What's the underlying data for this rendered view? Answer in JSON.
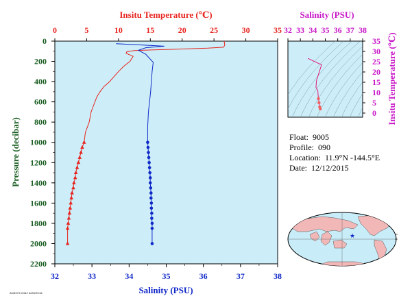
{
  "chart_data": [
    {
      "type": "line",
      "top_axis_title": "Insitu Temperature (℃)",
      "bottom_axis_title": "Salinity (PSU)",
      "ylabel": "Pressure (decibar)",
      "xlim_temperature": [
        0,
        35
      ],
      "xlim_salinity": [
        32,
        38
      ],
      "ylim": [
        0,
        2200
      ],
      "temperature_ticks": [
        0,
        5,
        10,
        15,
        20,
        25,
        30,
        35
      ],
      "salinity_ticks": [
        32,
        33,
        34,
        35,
        36,
        37,
        38
      ],
      "pressure_ticks": [
        0,
        200,
        400,
        600,
        800,
        1000,
        1200,
        1400,
        1600,
        1800,
        2000,
        2200
      ],
      "series": [
        {
          "quantity": "temperature",
          "color": "#e8241f",
          "marker": "triangle",
          "x": [
            26.6,
            26.7,
            26.5,
            24.0,
            20.0,
            16.0,
            12.5,
            11.3,
            11.2,
            12.3,
            11.8,
            10.8,
            10.0,
            9.3,
            8.6,
            7.7,
            7.1,
            6.6,
            6.3,
            6.0,
            5.7,
            5.4,
            5.1,
            4.8,
            4.6
          ],
          "y": [
            0,
            40,
            60,
            70,
            78,
            85,
            93,
            105,
            120,
            150,
            200,
            250,
            300,
            350,
            400,
            450,
            500,
            550,
            600,
            650,
            700,
            800,
            850,
            900,
            1000
          ],
          "marker_x": [
            4.6,
            4.3,
            4.1,
            3.9,
            3.7,
            3.5,
            3.3,
            3.2,
            3.0,
            2.9,
            2.7,
            2.6,
            2.5,
            2.4,
            2.3,
            2.2,
            2.1,
            2.0,
            2.0
          ],
          "marker_y": [
            1000,
            1050,
            1100,
            1150,
            1200,
            1250,
            1300,
            1350,
            1400,
            1450,
            1500,
            1550,
            1600,
            1650,
            1700,
            1750,
            1800,
            1850,
            2000
          ]
        },
        {
          "quantity": "salinity",
          "color": "#1028c8",
          "marker": "circle",
          "x": [
            33.65,
            34.95,
            34.45,
            34.25,
            34.45,
            34.55,
            34.65,
            34.62,
            34.6,
            34.58,
            34.55,
            34.52,
            34.5,
            34.5
          ],
          "y": [
            25,
            50,
            65,
            90,
            130,
            170,
            210,
            300,
            400,
            500,
            600,
            700,
            850,
            1000
          ],
          "marker_x": [
            34.5,
            34.51,
            34.52,
            34.53,
            34.54,
            34.55,
            34.56,
            34.57,
            34.57,
            34.58,
            34.59,
            34.59,
            34.6,
            34.6,
            34.61,
            34.61,
            34.62,
            34.62,
            34.62
          ],
          "marker_y": [
            1000,
            1050,
            1100,
            1150,
            1200,
            1250,
            1300,
            1350,
            1400,
            1450,
            1500,
            1550,
            1600,
            1650,
            1700,
            1750,
            1800,
            1850,
            2000
          ]
        }
      ]
    },
    {
      "type": "line",
      "xlabel": "Salinity (PSU)",
      "ylabel": "Insitu Temperature (℃)",
      "xlim": [
        32,
        38
      ],
      "ylim": [
        -2,
        35
      ],
      "x_ticks": [
        32,
        33,
        34,
        35,
        36,
        37,
        38
      ],
      "y_ticks": [
        0,
        5,
        10,
        15,
        20,
        25,
        30,
        35
      ],
      "series": [
        {
          "color": "#e0187e",
          "x": [
            33.6,
            34.7,
            34.3,
            34.25,
            34.4,
            34.42,
            34.45,
            34.5,
            34.55,
            34.6
          ],
          "y": [
            26.6,
            23.5,
            16.0,
            12.5,
            11.0,
            9.0,
            7.0,
            5.0,
            3.0,
            2.0
          ]
        }
      ]
    }
  ],
  "info": {
    "float_label": "Float:",
    "float_value": "9005",
    "profile_label": "Profile:",
    "profile_value": "090",
    "location_label": "Location:",
    "location_value": "11.9°N  -144.5°E",
    "date_label": "Date:",
    "date_value": "12/12/2015"
  },
  "map": {
    "marker": "★",
    "marker_color": "#1028c8",
    "ocean_color": "#c8ecf8",
    "land_color": "#f2b8b8"
  },
  "footer_code": "AN4979-0442 8/28/2016"
}
